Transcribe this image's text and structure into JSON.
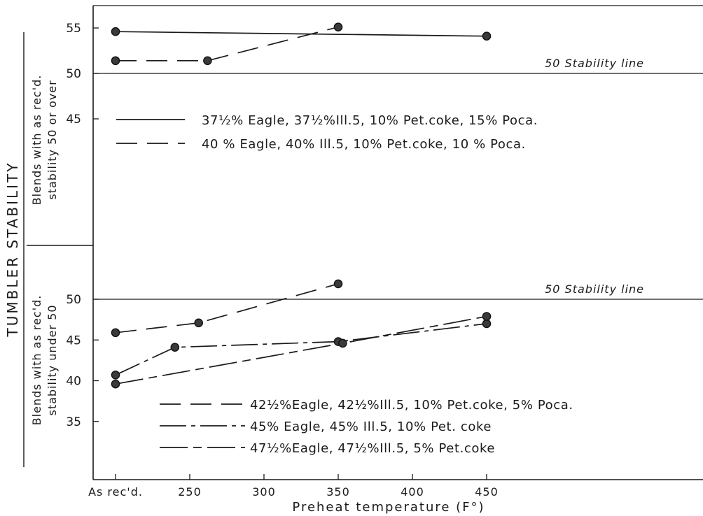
{
  "figure": {
    "ylabel_outer": "TUMBLER STABILITY",
    "xlabel": "Preheat temperature (F°)",
    "x_ticks": [
      "As rec'd.",
      "250",
      "300",
      "350",
      "400",
      "450"
    ]
  },
  "chart_data": [
    {
      "type": "line",
      "panel": "top",
      "ylabel": [
        "Blends with as rec'd.",
        "stability 50 or over"
      ],
      "ylim": [
        41,
        56
      ],
      "y_ticks": [
        45,
        50,
        55
      ],
      "x_scale": "temperature (F°), first tick labelled \"As rec'd.\"",
      "reference_line": {
        "value": 50,
        "label": "50 Stability line"
      },
      "legend_placement": "upper-left inside panel",
      "series": [
        {
          "name": "37½% Eagle, 37½%Ill.5, 10% Pet.coke, 15% Poca.",
          "style": "solid",
          "points": [
            {
              "x": "As rec'd.",
              "y": 54.6
            },
            {
              "x": 450,
              "y": 54.1
            }
          ]
        },
        {
          "name": "40 % Eagle, 40% Ill.5, 10% Pet.coke, 10 % Poca.",
          "style": "long-dash",
          "points": [
            {
              "x": "As rec'd.",
              "y": 51.4
            },
            {
              "x": 262,
              "y": 51.4
            },
            {
              "x": 350,
              "y": 55.1
            }
          ]
        }
      ]
    },
    {
      "type": "line",
      "panel": "bottom",
      "ylabel": [
        "Blends with as rec'd.",
        "stability under 50"
      ],
      "ylim": [
        31,
        55
      ],
      "y_ticks": [
        35,
        40,
        45,
        50
      ],
      "x_scale": "temperature (F°), first tick labelled \"As rec'd.\"",
      "reference_line": {
        "value": 50,
        "label": "50 Stability line"
      },
      "legend_placement": "lower-left inside panel",
      "series": [
        {
          "name": "42½%Eagle, 42½%Ill.5, 10% Pet.coke, 5% Poca.",
          "style": "long-dash",
          "points": [
            {
              "x": "As rec'd.",
              "y": 45.9
            },
            {
              "x": 256,
              "y": 47.1
            },
            {
              "x": 350,
              "y": 51.9
            }
          ]
        },
        {
          "name": "45% Eagle, 45% Ill.5, 10% Pet. coke",
          "style": "dash-dot",
          "points": [
            {
              "x": "As rec'd.",
              "y": 40.7
            },
            {
              "x": 240,
              "y": 44.1
            },
            {
              "x": 350,
              "y": 44.8
            },
            {
              "x": 450,
              "y": 47.0
            }
          ]
        },
        {
          "name": "47½%Eagle, 47½%Ill.5, 5% Pet.coke",
          "style": "solid-dashed",
          "points": [
            {
              "x": "As rec'd.",
              "y": 39.6
            },
            {
              "x": 353,
              "y": 44.6
            },
            {
              "x": 450,
              "y": 47.9
            }
          ]
        }
      ]
    }
  ]
}
